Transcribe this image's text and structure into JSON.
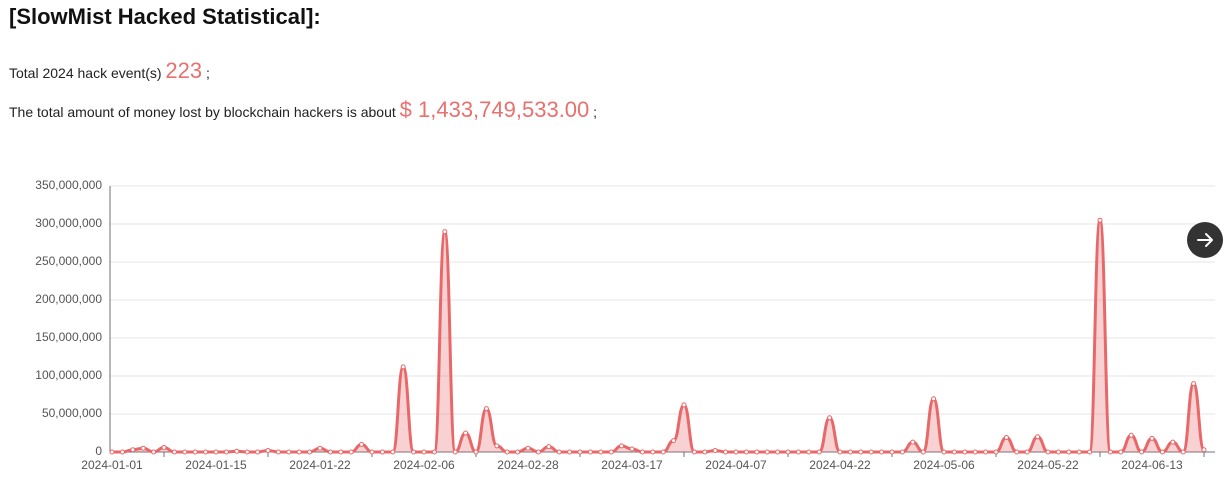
{
  "header": {
    "title": "[SlowMist Hacked Statistical]:",
    "events_prefix": "Total 2024 hack event(s)",
    "events_count": "223",
    "events_suffix": ";",
    "money_prefix": "The total amount of money lost by blockchain hackers is about",
    "money_amount": "$ 1,433,749,533.00",
    "money_suffix": ";"
  },
  "chart_data": {
    "type": "line",
    "color": "#e8686a",
    "smooth": true,
    "area": true,
    "grid": true,
    "categories": [
      "2024-01-01",
      null,
      null,
      null,
      null,
      null,
      null,
      null,
      null,
      null,
      "2024-01-15",
      null,
      null,
      null,
      null,
      null,
      null,
      null,
      null,
      null,
      "2024-01-22",
      null,
      null,
      null,
      null,
      null,
      null,
      null,
      null,
      null,
      "2024-02-06",
      null,
      null,
      null,
      null,
      null,
      null,
      null,
      null,
      null,
      "2024-02-28",
      null,
      null,
      null,
      null,
      null,
      null,
      null,
      null,
      null,
      "2024-03-17",
      null,
      null,
      null,
      null,
      null,
      null,
      null,
      null,
      null,
      "2024-04-07",
      null,
      null,
      null,
      null,
      null,
      null,
      null,
      null,
      null,
      "2024-04-22",
      null,
      null,
      null,
      null,
      null,
      null,
      null,
      null,
      null,
      "2024-05-06",
      null,
      null,
      null,
      null,
      null,
      null,
      null,
      null,
      null,
      "2024-05-22",
      null,
      null,
      null,
      null,
      null,
      null,
      null,
      null,
      null,
      "2024-06-13",
      null,
      null,
      null,
      null,
      null
    ],
    "values": [
      0,
      0,
      3000000,
      5000000,
      0,
      6000000,
      0,
      0,
      0,
      0,
      0,
      0,
      1000000,
      0,
      0,
      2000000,
      0,
      0,
      0,
      0,
      5000000,
      0,
      0,
      0,
      10000000,
      0,
      0,
      0,
      112000000,
      0,
      0,
      0,
      290000000,
      0,
      25000000,
      0,
      57000000,
      8000000,
      0,
      0,
      5000000,
      0,
      7000000,
      0,
      0,
      0,
      0,
      0,
      0,
      8000000,
      4000000,
      0,
      0,
      0,
      15000000,
      62000000,
      0,
      0,
      2000000,
      0,
      0,
      0,
      0,
      0,
      0,
      0,
      0,
      0,
      0,
      45000000,
      0,
      0,
      0,
      0,
      0,
      0,
      0,
      13000000,
      0,
      70000000,
      0,
      0,
      0,
      0,
      0,
      0,
      19000000,
      0,
      0,
      20000000,
      0,
      0,
      0,
      0,
      0,
      305000000,
      0,
      0,
      22000000,
      0,
      18000000,
      0,
      13000000,
      0,
      90000000,
      3000000
    ],
    "ylim": [
      0,
      350000000
    ],
    "yticks": [
      0,
      {
        "value": 50000000,
        "label": "50,000,000"
      },
      {
        "value": 100000000,
        "label": "100,000,000"
      },
      {
        "value": 150000000,
        "label": "150,000,000"
      },
      {
        "value": 200000000,
        "label": "200,000,000"
      },
      {
        "value": 250000000,
        "label": "250,000,000"
      },
      {
        "value": 300000000,
        "label": "300,000,000"
      },
      {
        "value": 350000000,
        "label": "350,000,000"
      }
    ]
  }
}
